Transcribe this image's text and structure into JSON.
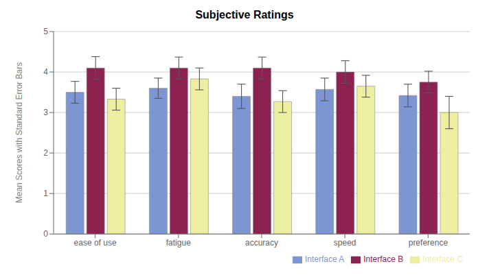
{
  "chart_data": {
    "type": "bar",
    "title": "Subjective Ratings",
    "ylabel": "Mean Scores with Standard Error Bars",
    "categories": [
      "ease of use",
      "fatigue",
      "accuracy",
      "speed",
      "preference"
    ],
    "series": [
      {
        "name": "Interface A",
        "color": "#7B96D2",
        "values": [
          3.5,
          3.6,
          3.4,
          3.57,
          3.42
        ],
        "errors": [
          0.27,
          0.25,
          0.3,
          0.28,
          0.28
        ]
      },
      {
        "name": "Interface B",
        "color": "#8B2252",
        "values": [
          4.1,
          4.1,
          4.1,
          4.0,
          3.75
        ],
        "errors": [
          0.28,
          0.27,
          0.27,
          0.28,
          0.27
        ]
      },
      {
        "name": "Interface C",
        "color": "#EEEEA0",
        "values": [
          3.33,
          3.83,
          3.27,
          3.65,
          3.0
        ],
        "errors": [
          0.27,
          0.27,
          0.27,
          0.27,
          0.4
        ]
      }
    ],
    "ylim": [
      0,
      5
    ],
    "yticks": [
      0,
      1,
      2,
      3,
      4,
      5
    ],
    "grid": true,
    "legend": "lower right"
  }
}
